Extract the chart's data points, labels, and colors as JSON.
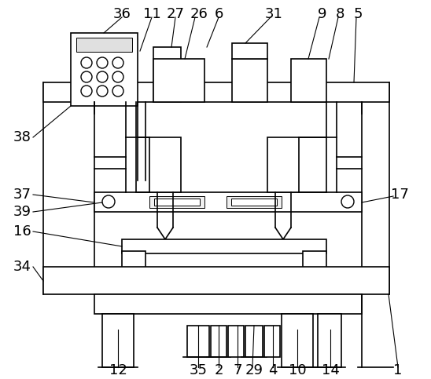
{
  "background_color": "#ffffff",
  "line_color": "#000000",
  "lw": 1.2,
  "tlw": 0.7,
  "fig_width": 5.48,
  "fig_height": 4.83,
  "dpi": 100
}
